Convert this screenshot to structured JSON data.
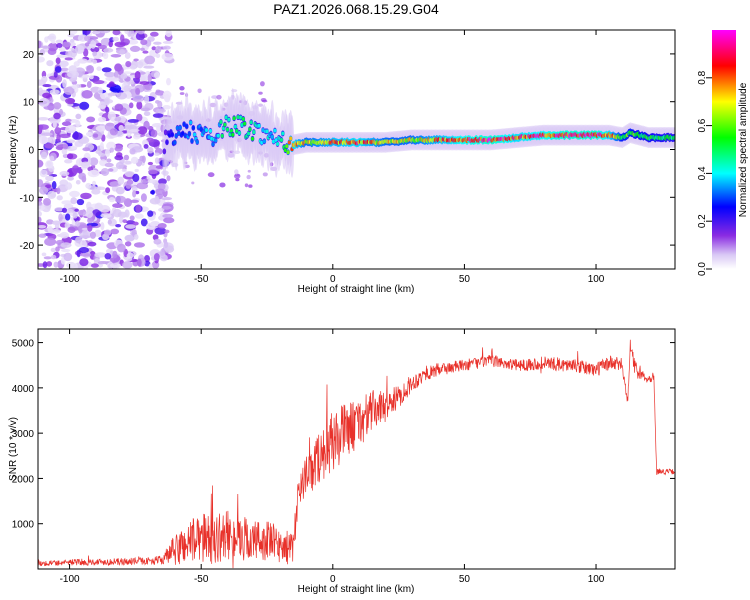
{
  "title": "PAZ1.2026.068.15.29.G04",
  "chart_data": [
    {
      "type": "heatmap",
      "name": "spectrogram",
      "xlabel": "Height of straight line (km)",
      "ylabel": "Frequency (Hz)",
      "xlim": [
        -112,
        130
      ],
      "ylim": [
        -25,
        25
      ],
      "xticks": [
        -100,
        -50,
        0,
        50,
        100
      ],
      "yticks": [
        -20,
        -10,
        0,
        10,
        20
      ],
      "colorbar": {
        "label": "Normalized spectral amplitude",
        "range": [
          0,
          1
        ],
        "ticks": [
          0.0,
          0.2,
          0.4,
          0.6,
          0.8
        ],
        "tick_labels": [
          "0.0",
          "0.2",
          "0.4",
          "0.6",
          "0.8"
        ],
        "colors": [
          "#ffffff",
          "#8a2be2",
          "#0000ff",
          "#00ffff",
          "#00ff00",
          "#ffff00",
          "#ff0000",
          "#ff00ff"
        ]
      },
      "ridge": {
        "height_km": [
          -112,
          -100,
          -80,
          -65,
          -60,
          -55,
          -50,
          -45,
          -40,
          -35,
          -30,
          -25,
          -20,
          -15,
          -10,
          0,
          10,
          20,
          30,
          40,
          50,
          60,
          70,
          80,
          90,
          100,
          105,
          110,
          113,
          120,
          130
        ],
        "freq_hz": [
          0,
          0,
          0,
          1,
          3,
          4,
          3,
          3,
          5,
          5,
          4,
          3,
          2,
          1,
          1.5,
          1.5,
          1.5,
          1.5,
          2,
          2,
          2,
          2,
          2.5,
          3,
          3,
          3,
          3,
          2.5,
          3.5,
          2.5,
          2.5
        ],
        "amplitude": [
          0.1,
          0.1,
          0.1,
          0.15,
          0.3,
          0.35,
          0.35,
          0.4,
          0.5,
          0.5,
          0.5,
          0.4,
          0.45,
          0.85,
          0.7,
          0.8,
          0.85,
          0.7,
          0.7,
          0.8,
          0.9,
          0.95,
          0.85,
          0.9,
          0.95,
          0.95,
          0.85,
          0.6,
          0.6,
          0.55,
          0.5
        ]
      }
    },
    {
      "type": "line",
      "name": "snr",
      "xlabel": "Height of straight line (km)",
      "ylabel": "SNR (10 * v/v)",
      "xlim": [
        -112,
        130
      ],
      "ylim": [
        0,
        5300
      ],
      "xticks": [
        -100,
        -50,
        0,
        50,
        100
      ],
      "yticks": [
        1000,
        2000,
        3000,
        4000,
        5000
      ],
      "color": "#e8312a",
      "envelope": {
        "height_km": [
          -112,
          -100,
          -80,
          -70,
          -65,
          -60,
          -55,
          -50,
          -45,
          -40,
          -35,
          -30,
          -25,
          -20,
          -15,
          -13,
          -10,
          -5,
          0,
          5,
          10,
          15,
          20,
          25,
          30,
          35,
          40,
          50,
          60,
          70,
          80,
          90,
          100,
          105,
          110,
          112,
          113,
          115,
          120,
          122,
          123,
          125,
          130
        ],
        "snr_mean": [
          120,
          150,
          160,
          180,
          200,
          400,
          600,
          700,
          650,
          750,
          700,
          600,
          650,
          500,
          450,
          1800,
          2000,
          2500,
          2800,
          3100,
          3200,
          3500,
          3600,
          3800,
          4100,
          4300,
          4400,
          4500,
          4600,
          4500,
          4550,
          4500,
          4400,
          4550,
          4500,
          3700,
          4900,
          4400,
          4200,
          4250,
          2150,
          2150,
          2150
        ],
        "snr_noise": [
          60,
          70,
          80,
          80,
          100,
          350,
          500,
          550,
          550,
          550,
          500,
          500,
          450,
          400,
          350,
          350,
          500,
          600,
          700,
          600,
          550,
          450,
          350,
          250,
          200,
          150,
          150,
          130,
          130,
          130,
          150,
          150,
          160,
          170,
          160,
          100,
          150,
          180,
          100,
          100,
          60,
          60,
          60
        ]
      }
    }
  ]
}
